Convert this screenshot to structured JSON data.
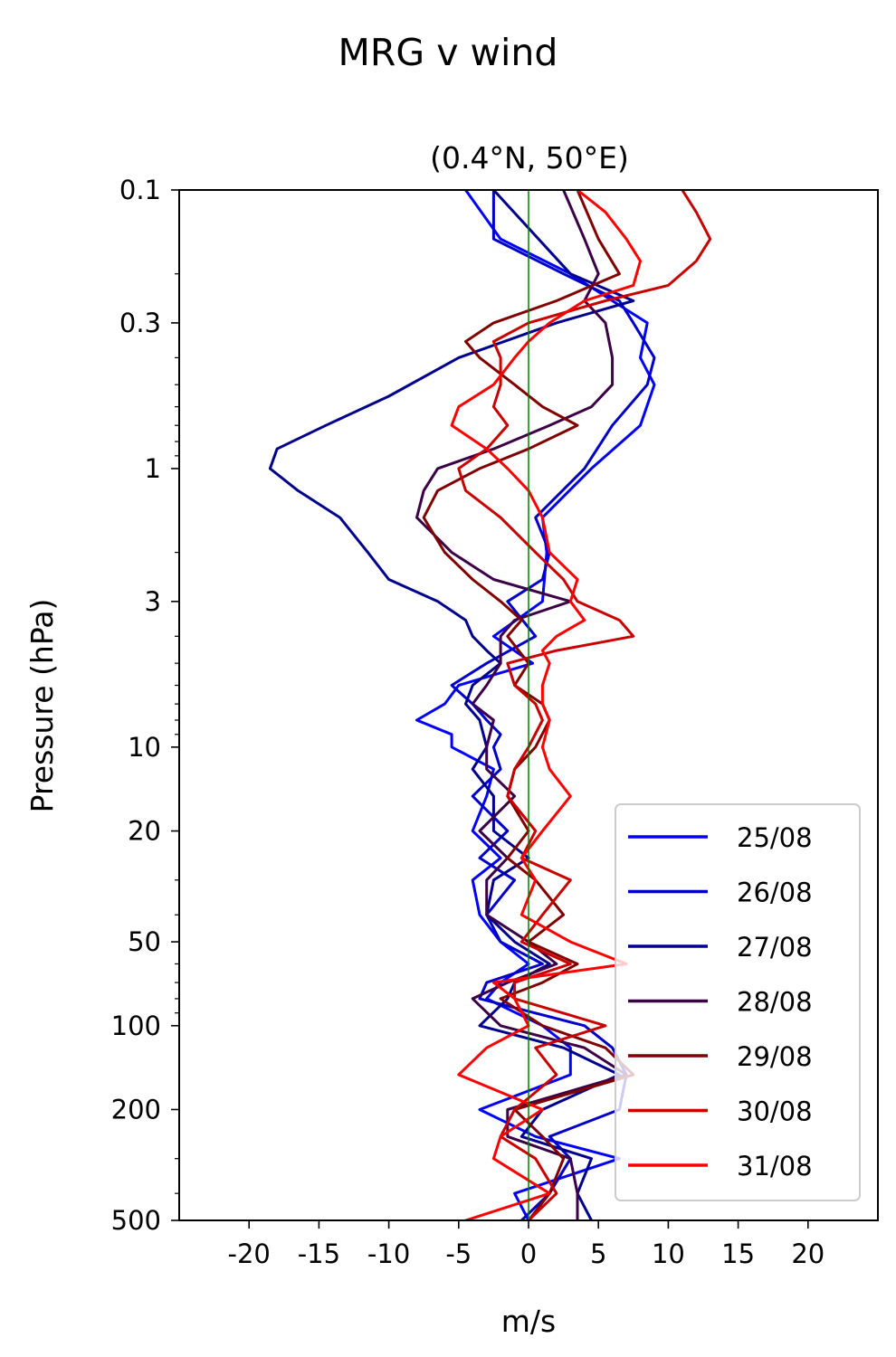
{
  "suptitle": "MRG v wind",
  "chart_data": {
    "type": "line",
    "title": "(0.4°N, 50°E)",
    "xlabel": "m/s",
    "ylabel": "Pressure (hPa)",
    "xlim": [
      -25,
      25
    ],
    "ylim": [
      500,
      0.1
    ],
    "yscale": "log",
    "grid": false,
    "legend_position": "lower right",
    "xticks": [
      -20,
      -15,
      -10,
      -5,
      0,
      5,
      10,
      15,
      20
    ],
    "xtick_labels": [
      "-20",
      "-15",
      "-10",
      "-5",
      "0",
      "5",
      "10",
      "15",
      "20"
    ],
    "yticks": [
      0.1,
      0.3,
      1,
      3,
      10,
      20,
      50,
      100,
      200,
      500
    ],
    "ytick_labels": [
      "0.1",
      "0.3",
      "1",
      "3",
      "10",
      "20",
      "50",
      "100",
      "200",
      "500"
    ],
    "zero_line_color": "#008000",
    "series": [
      {
        "name": "25/08",
        "color": "#0000ff",
        "pressure": [
          0.1,
          0.15,
          0.2,
          0.25,
          0.3,
          0.4,
          0.5,
          0.7,
          1.0,
          1.5,
          2.0,
          3.0,
          4.0,
          5.0,
          6.0,
          7.0,
          8.0,
          9.0,
          10.0,
          12.0,
          15.0,
          20.0,
          25.0,
          30.0,
          40.0,
          50.0,
          60.0,
          70.0,
          80.0,
          100.0,
          120.0,
          150.0,
          200.0,
          250.0,
          300.0,
          400.0,
          500.0
        ],
        "v": [
          -4.5,
          -2.0,
          3.0,
          6.0,
          8.5,
          8.0,
          9.0,
          8.0,
          4.5,
          1.0,
          1.3,
          1.0,
          -2.5,
          0.3,
          -5.0,
          -6.0,
          -8.0,
          -5.5,
          -5.5,
          -2.5,
          -3.0,
          -4.0,
          -2.0,
          -4.0,
          -3.5,
          -2.0,
          0.0,
          -2.0,
          -3.0,
          1.0,
          3.0,
          3.0,
          -3.5,
          0.5,
          6.5,
          -1.0,
          0.0
        ]
      },
      {
        "name": "26/08",
        "color": "#0000c8",
        "pressure": [
          0.1,
          0.15,
          0.2,
          0.25,
          0.3,
          0.4,
          0.5,
          0.7,
          1.0,
          1.5,
          2.0,
          2.5,
          3.0,
          4.0,
          5.0,
          6.0,
          7.0,
          8.0,
          9.0,
          10.0,
          12.0,
          15.0,
          20.0,
          25.0,
          30.0,
          40.0,
          50.0,
          60.0,
          70.0,
          80.0,
          100.0,
          120.0,
          150.0,
          200.0,
          250.0,
          300.0,
          400.0,
          500.0
        ],
        "v": [
          -2.5,
          -2.5,
          2.5,
          6.5,
          7.5,
          9.0,
          8.5,
          6.0,
          4.0,
          0.5,
          1.5,
          1.0,
          -1.5,
          0.5,
          -3.0,
          -5.5,
          -4.0,
          -3.0,
          -2.0,
          -2.5,
          -2.0,
          -4.0,
          -1.5,
          -3.5,
          -1.0,
          -3.0,
          -2.0,
          1.0,
          -3.0,
          -3.5,
          4.0,
          6.0,
          7.0,
          6.5,
          1.5,
          3.0,
          1.5,
          -0.5
        ]
      },
      {
        "name": "27/08",
        "color": "#00008c",
        "pressure": [
          0.1,
          0.2,
          0.25,
          0.3,
          0.4,
          0.55,
          0.7,
          0.85,
          1.0,
          1.2,
          1.5,
          2.0,
          2.5,
          3.0,
          3.5,
          4.0,
          4.5,
          5.0,
          6.0,
          7.0,
          8.0,
          10.0,
          12.0,
          15.0,
          20.0,
          25.0,
          30.0,
          40.0,
          50.0,
          60.0,
          70.0,
          80.0,
          100.0,
          120.0,
          150.0,
          200.0,
          250.0,
          300.0,
          400.0,
          500.0
        ],
        "v": [
          -2.5,
          3.0,
          7.5,
          2.0,
          -5.0,
          -10.0,
          -14.5,
          -18.0,
          -18.5,
          -16.5,
          -13.5,
          -11.5,
          -10.0,
          -6.5,
          -4.5,
          -4.0,
          -3.0,
          -2.0,
          -4.0,
          -4.5,
          -3.5,
          -3.0,
          -4.0,
          -2.5,
          -2.5,
          0.0,
          -2.5,
          -3.0,
          -1.0,
          1.5,
          -1.0,
          -1.5,
          -3.5,
          2.5,
          6.5,
          1.0,
          -0.5,
          4.5,
          3.5,
          4.5
        ]
      },
      {
        "name": "28/08",
        "color": "#3c0046",
        "pressure": [
          0.1,
          0.15,
          0.2,
          0.25,
          0.3,
          0.4,
          0.5,
          0.6,
          0.7,
          0.85,
          1.0,
          1.2,
          1.5,
          2.0,
          2.5,
          3.0,
          3.5,
          4.0,
          5.0,
          6.0,
          7.0,
          8.0,
          10.0,
          12.0,
          15.0,
          20.0,
          25.0,
          30.0,
          40.0,
          50.0,
          60.0,
          70.0,
          80.0,
          100.0,
          120.0,
          150.0,
          200.0,
          250.0,
          300.0,
          400.0,
          500.0
        ],
        "v": [
          2.5,
          4.0,
          5.0,
          4.0,
          5.5,
          6.0,
          6.0,
          4.5,
          1.5,
          -2.5,
          -6.5,
          -7.5,
          -8.0,
          -5.5,
          -2.5,
          3.0,
          -1.0,
          -2.0,
          -2.0,
          -3.0,
          -4.0,
          -2.5,
          -3.0,
          -3.0,
          -1.0,
          -3.5,
          -1.5,
          -3.0,
          -3.0,
          0.0,
          2.0,
          -1.5,
          -4.0,
          -2.0,
          4.0,
          7.0,
          -1.5,
          -1.5,
          3.0,
          3.5,
          3.5
        ]
      },
      {
        "name": "29/08",
        "color": "#800000",
        "pressure": [
          0.1,
          0.15,
          0.2,
          0.25,
          0.3,
          0.35,
          0.4,
          0.5,
          0.6,
          0.7,
          0.85,
          1.0,
          1.2,
          1.5,
          2.0,
          2.5,
          3.0,
          3.5,
          4.0,
          5.0,
          6.0,
          7.0,
          8.0,
          10.0,
          12.0,
          15.0,
          20.0,
          25.0,
          30.0,
          40.0,
          50.0,
          60.0,
          70.0,
          80.0,
          100.0,
          120.0,
          150.0,
          200.0,
          250.0,
          300.0,
          400.0,
          500.0
        ],
        "v": [
          3.5,
          5.0,
          6.5,
          2.0,
          -2.5,
          -4.5,
          -3.5,
          -1.0,
          1.0,
          3.5,
          0.0,
          -3.5,
          -6.5,
          -7.5,
          -6.0,
          -4.0,
          -2.0,
          -0.5,
          -1.5,
          0.0,
          -1.0,
          1.0,
          1.5,
          0.5,
          -1.0,
          -1.5,
          0.0,
          -1.5,
          0.5,
          2.5,
          0.0,
          3.5,
          1.0,
          -2.0,
          1.0,
          5.5,
          7.5,
          -1.0,
          1.0,
          2.5,
          1.5,
          0.0
        ]
      },
      {
        "name": "30/08",
        "color": "#c80000",
        "pressure": [
          0.1,
          0.12,
          0.15,
          0.18,
          0.22,
          0.25,
          0.3,
          0.35,
          0.4,
          0.5,
          0.6,
          0.7,
          0.85,
          1.0,
          1.2,
          1.5,
          2.0,
          2.5,
          3.0,
          3.5,
          4.0,
          4.5,
          5.0,
          6.0,
          7.0,
          8.0,
          10.0,
          12.0,
          15.0,
          20.0,
          25.0,
          30.0,
          40.0,
          50.0,
          60.0,
          70.0,
          80.0,
          100.0,
          120.0,
          150.0,
          200.0,
          250.0,
          300.0,
          400.0,
          500.0
        ],
        "v": [
          11.0,
          12.0,
          13.0,
          12.0,
          10.0,
          5.5,
          0.0,
          -2.5,
          -2.0,
          -2.0,
          -2.5,
          -1.5,
          -3.0,
          -5.0,
          -4.5,
          -2.0,
          0.5,
          2.5,
          3.5,
          6.5,
          7.5,
          2.0,
          -1.5,
          -1.0,
          0.5,
          1.0,
          0.0,
          -1.0,
          -1.5,
          0.5,
          -0.5,
          3.0,
          1.0,
          -0.5,
          3.0,
          -1.0,
          -1.0,
          5.5,
          0.5,
          2.0,
          -1.0,
          -2.0,
          0.5,
          2.0,
          0.0
        ]
      },
      {
        "name": "31/08",
        "color": "#ff0000",
        "pressure": [
          0.1,
          0.12,
          0.15,
          0.18,
          0.22,
          0.25,
          0.3,
          0.35,
          0.4,
          0.5,
          0.6,
          0.7,
          0.85,
          1.0,
          1.2,
          1.5,
          2.0,
          2.5,
          3.0,
          3.5,
          4.0,
          4.5,
          5.0,
          6.0,
          7.0,
          8.0,
          10.0,
          12.0,
          15.0,
          20.0,
          25.0,
          30.0,
          40.0,
          50.0,
          60.0,
          70.0,
          80.0,
          100.0,
          120.0,
          150.0,
          200.0,
          250.0,
          300.0,
          400.0,
          500.0
        ],
        "v": [
          3.5,
          5.5,
          7.0,
          8.0,
          7.5,
          4.0,
          1.5,
          0.0,
          -1.0,
          -2.5,
          -5.0,
          -5.5,
          -3.0,
          -1.5,
          0.0,
          1.0,
          1.5,
          3.5,
          3.0,
          4.0,
          2.0,
          1.0,
          1.5,
          1.0,
          1.0,
          1.5,
          1.0,
          1.5,
          3.0,
          1.0,
          -0.5,
          0.5,
          -0.5,
          3.0,
          7.0,
          -2.5,
          -1.0,
          0.0,
          -3.0,
          -5.0,
          1.0,
          -2.0,
          -2.5,
          1.5,
          -4.5
        ]
      }
    ]
  }
}
